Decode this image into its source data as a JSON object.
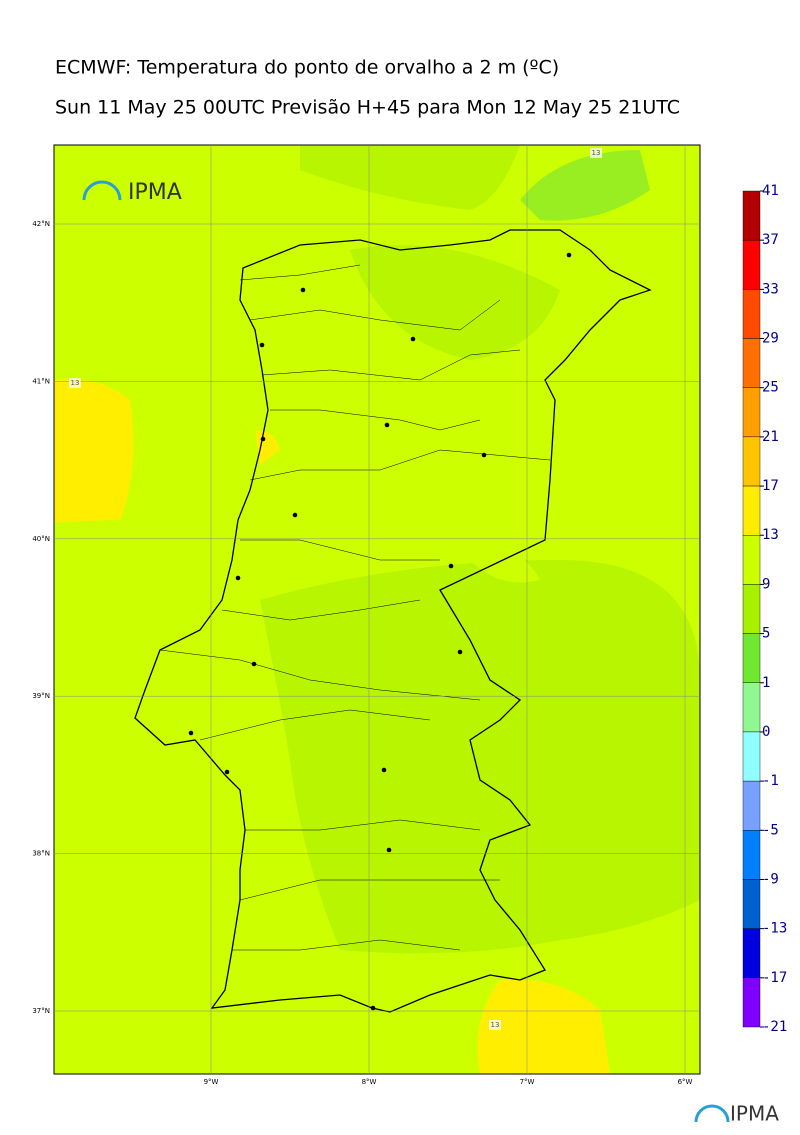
{
  "map": {
    "title": "ECMWF: Temperatura do ponto de orvalho a 2 m (ºC)",
    "subtitle": "Sun 11 May 25 00UTC Previsão H+45 para Mon 12 May 25 21UTC",
    "logo": "IPMA",
    "lat_ticks": [
      {
        "value": 42,
        "label": "42°N"
      },
      {
        "value": 41,
        "label": "41°N"
      },
      {
        "value": 40,
        "label": "40°N"
      },
      {
        "value": 39,
        "label": "39°N"
      },
      {
        "value": 38,
        "label": "38°N"
      },
      {
        "value": 37,
        "label": "37°N"
      }
    ],
    "lon_ticks": [
      {
        "value": -9,
        "label": "9°W"
      },
      {
        "value": -8,
        "label": "8°W"
      },
      {
        "value": -7,
        "label": "7°W"
      },
      {
        "value": -6,
        "label": "6°W"
      }
    ],
    "contour_labels": [
      "13",
      "13",
      "13"
    ],
    "colorbar": {
      "levels": [
        41,
        37,
        33,
        29,
        25,
        21,
        17,
        13,
        9,
        5,
        1,
        0,
        -1,
        -5,
        -9,
        -13,
        -17,
        -21
      ],
      "colors": [
        "#b40000",
        "#ff0000",
        "#ff4a00",
        "#ff7000",
        "#ffa000",
        "#ffc400",
        "#ffec00",
        "#ccff00",
        "#a6f000",
        "#70e830",
        "#90f890",
        "#90ffff",
        "#78a0ff",
        "#0080ff",
        "#0060d0",
        "#0000e0",
        "#8000ff"
      ]
    }
  }
}
